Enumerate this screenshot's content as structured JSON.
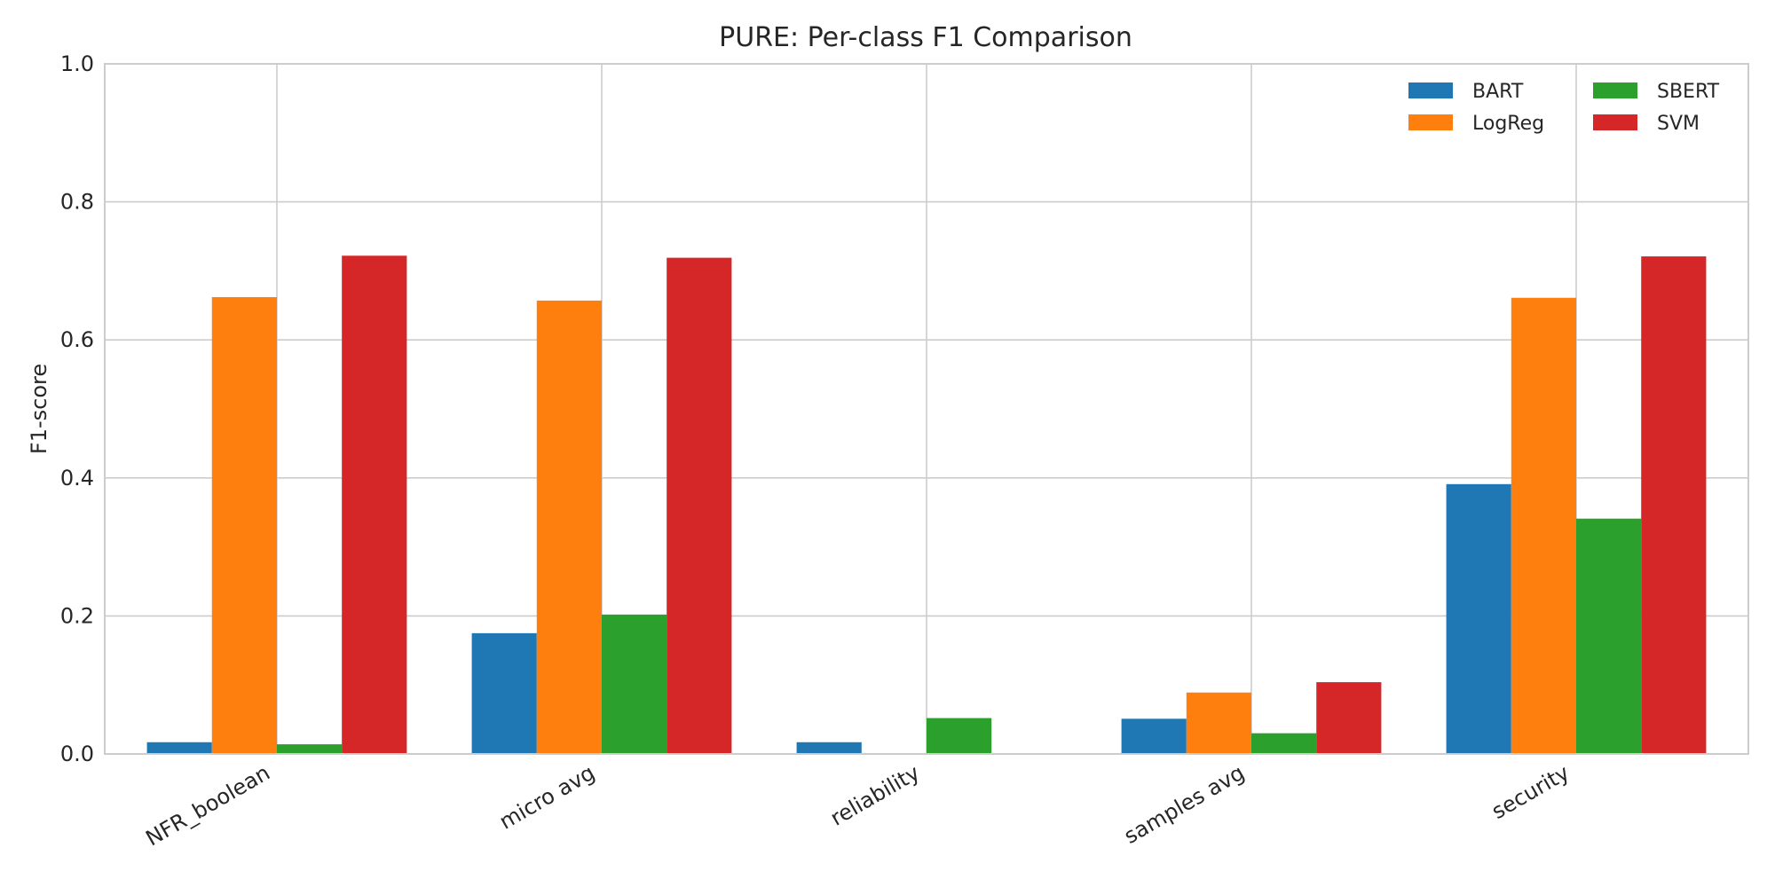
{
  "chart_data": {
    "type": "bar",
    "title": "PURE: Per-class F1 Comparison",
    "xlabel": "",
    "ylabel": "F1-score",
    "ylim": [
      0,
      1.0
    ],
    "yticks": [
      "0.0",
      "0.2",
      "0.4",
      "0.6",
      "0.8",
      "1.0"
    ],
    "categories": [
      "NFR_boolean",
      "micro avg",
      "reliability",
      "samples avg",
      "security"
    ],
    "series": [
      {
        "name": "BART",
        "color": "#1f77b4",
        "values": [
          0.017,
          0.175,
          0.017,
          0.051,
          0.391
        ]
      },
      {
        "name": "LogReg",
        "color": "#ff7f0e",
        "values": [
          0.662,
          0.657,
          0.0,
          0.089,
          0.661
        ]
      },
      {
        "name": "SBERT",
        "color": "#2ca02c",
        "values": [
          0.014,
          0.202,
          0.052,
          0.03,
          0.341
        ]
      },
      {
        "name": "SVM",
        "color": "#d62728",
        "values": [
          0.722,
          0.719,
          0.0,
          0.104,
          0.721
        ]
      }
    ],
    "grid": true,
    "legend_position": "top-right",
    "legend_columns": 2
  }
}
